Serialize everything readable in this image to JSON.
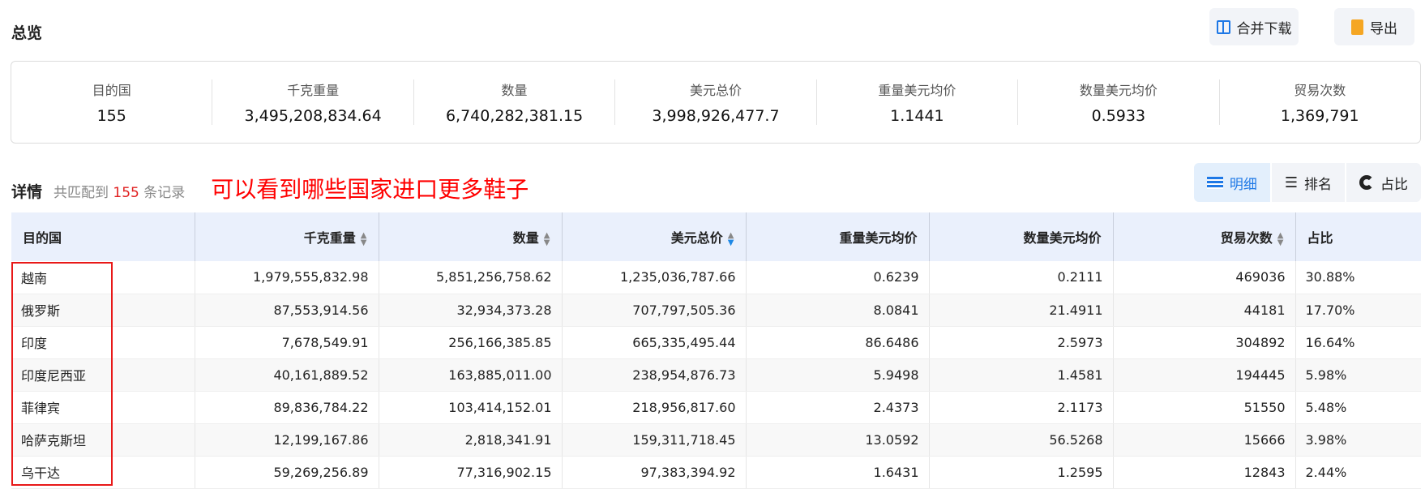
{
  "header": {
    "title": "总览",
    "merge_download": "合并下载",
    "export": "导出"
  },
  "summary": [
    {
      "label": "目的国",
      "value": "155"
    },
    {
      "label": "千克重量",
      "value": "3,495,208,834.64"
    },
    {
      "label": "数量",
      "value": "6,740,282,381.15"
    },
    {
      "label": "美元总价",
      "value": "3,998,926,477.7"
    },
    {
      "label": "重量美元均价",
      "value": "1.1441"
    },
    {
      "label": "数量美元均价",
      "value": "0.5933"
    },
    {
      "label": "贸易次数",
      "value": "1,369,791"
    }
  ],
  "details": {
    "title": "详情",
    "prefix": "共匹配到",
    "count": "155",
    "suffix": "条记录",
    "annotation": "可以看到哪些国家进口更多鞋子"
  },
  "views": {
    "detail": "明细",
    "rank": "排名",
    "share": "占比"
  },
  "table": {
    "columns": [
      "目的国",
      "千克重量",
      "数量",
      "美元总价",
      "重量美元均价",
      "数量美元均价",
      "贸易次数",
      "占比"
    ],
    "sort_active": "美元总价",
    "sort_direction": "descending",
    "rows": [
      [
        "越南",
        "1,979,555,832.98",
        "5,851,256,758.62",
        "1,235,036,787.66",
        "0.6239",
        "0.2111",
        "469036",
        "30.88%"
      ],
      [
        "俄罗斯",
        "87,553,914.56",
        "32,934,373.28",
        "707,797,505.36",
        "8.0841",
        "21.4911",
        "44181",
        "17.70%"
      ],
      [
        "印度",
        "7,678,549.91",
        "256,166,385.85",
        "665,335,495.44",
        "86.6486",
        "2.5973",
        "304892",
        "16.64%"
      ],
      [
        "印度尼西亚",
        "40,161,889.52",
        "163,885,011.00",
        "238,954,876.73",
        "5.9498",
        "1.4581",
        "194445",
        "5.98%"
      ],
      [
        "菲律宾",
        "89,836,784.22",
        "103,414,152.01",
        "218,956,817.60",
        "2.4373",
        "2.1173",
        "51550",
        "5.48%"
      ],
      [
        "哈萨克斯坦",
        "12,199,167.86",
        "2,818,341.91",
        "159,311,718.45",
        "13.0592",
        "56.5268",
        "15666",
        "3.98%"
      ],
      [
        "乌干达",
        "59,269,256.89",
        "77,316,902.15",
        "97,383,394.92",
        "1.6431",
        "1.2595",
        "12843",
        "2.44%"
      ]
    ]
  },
  "colors": {
    "accent": "#1e78e6",
    "highlight": "#e81818",
    "header_bg": "#eaf0fc"
  }
}
